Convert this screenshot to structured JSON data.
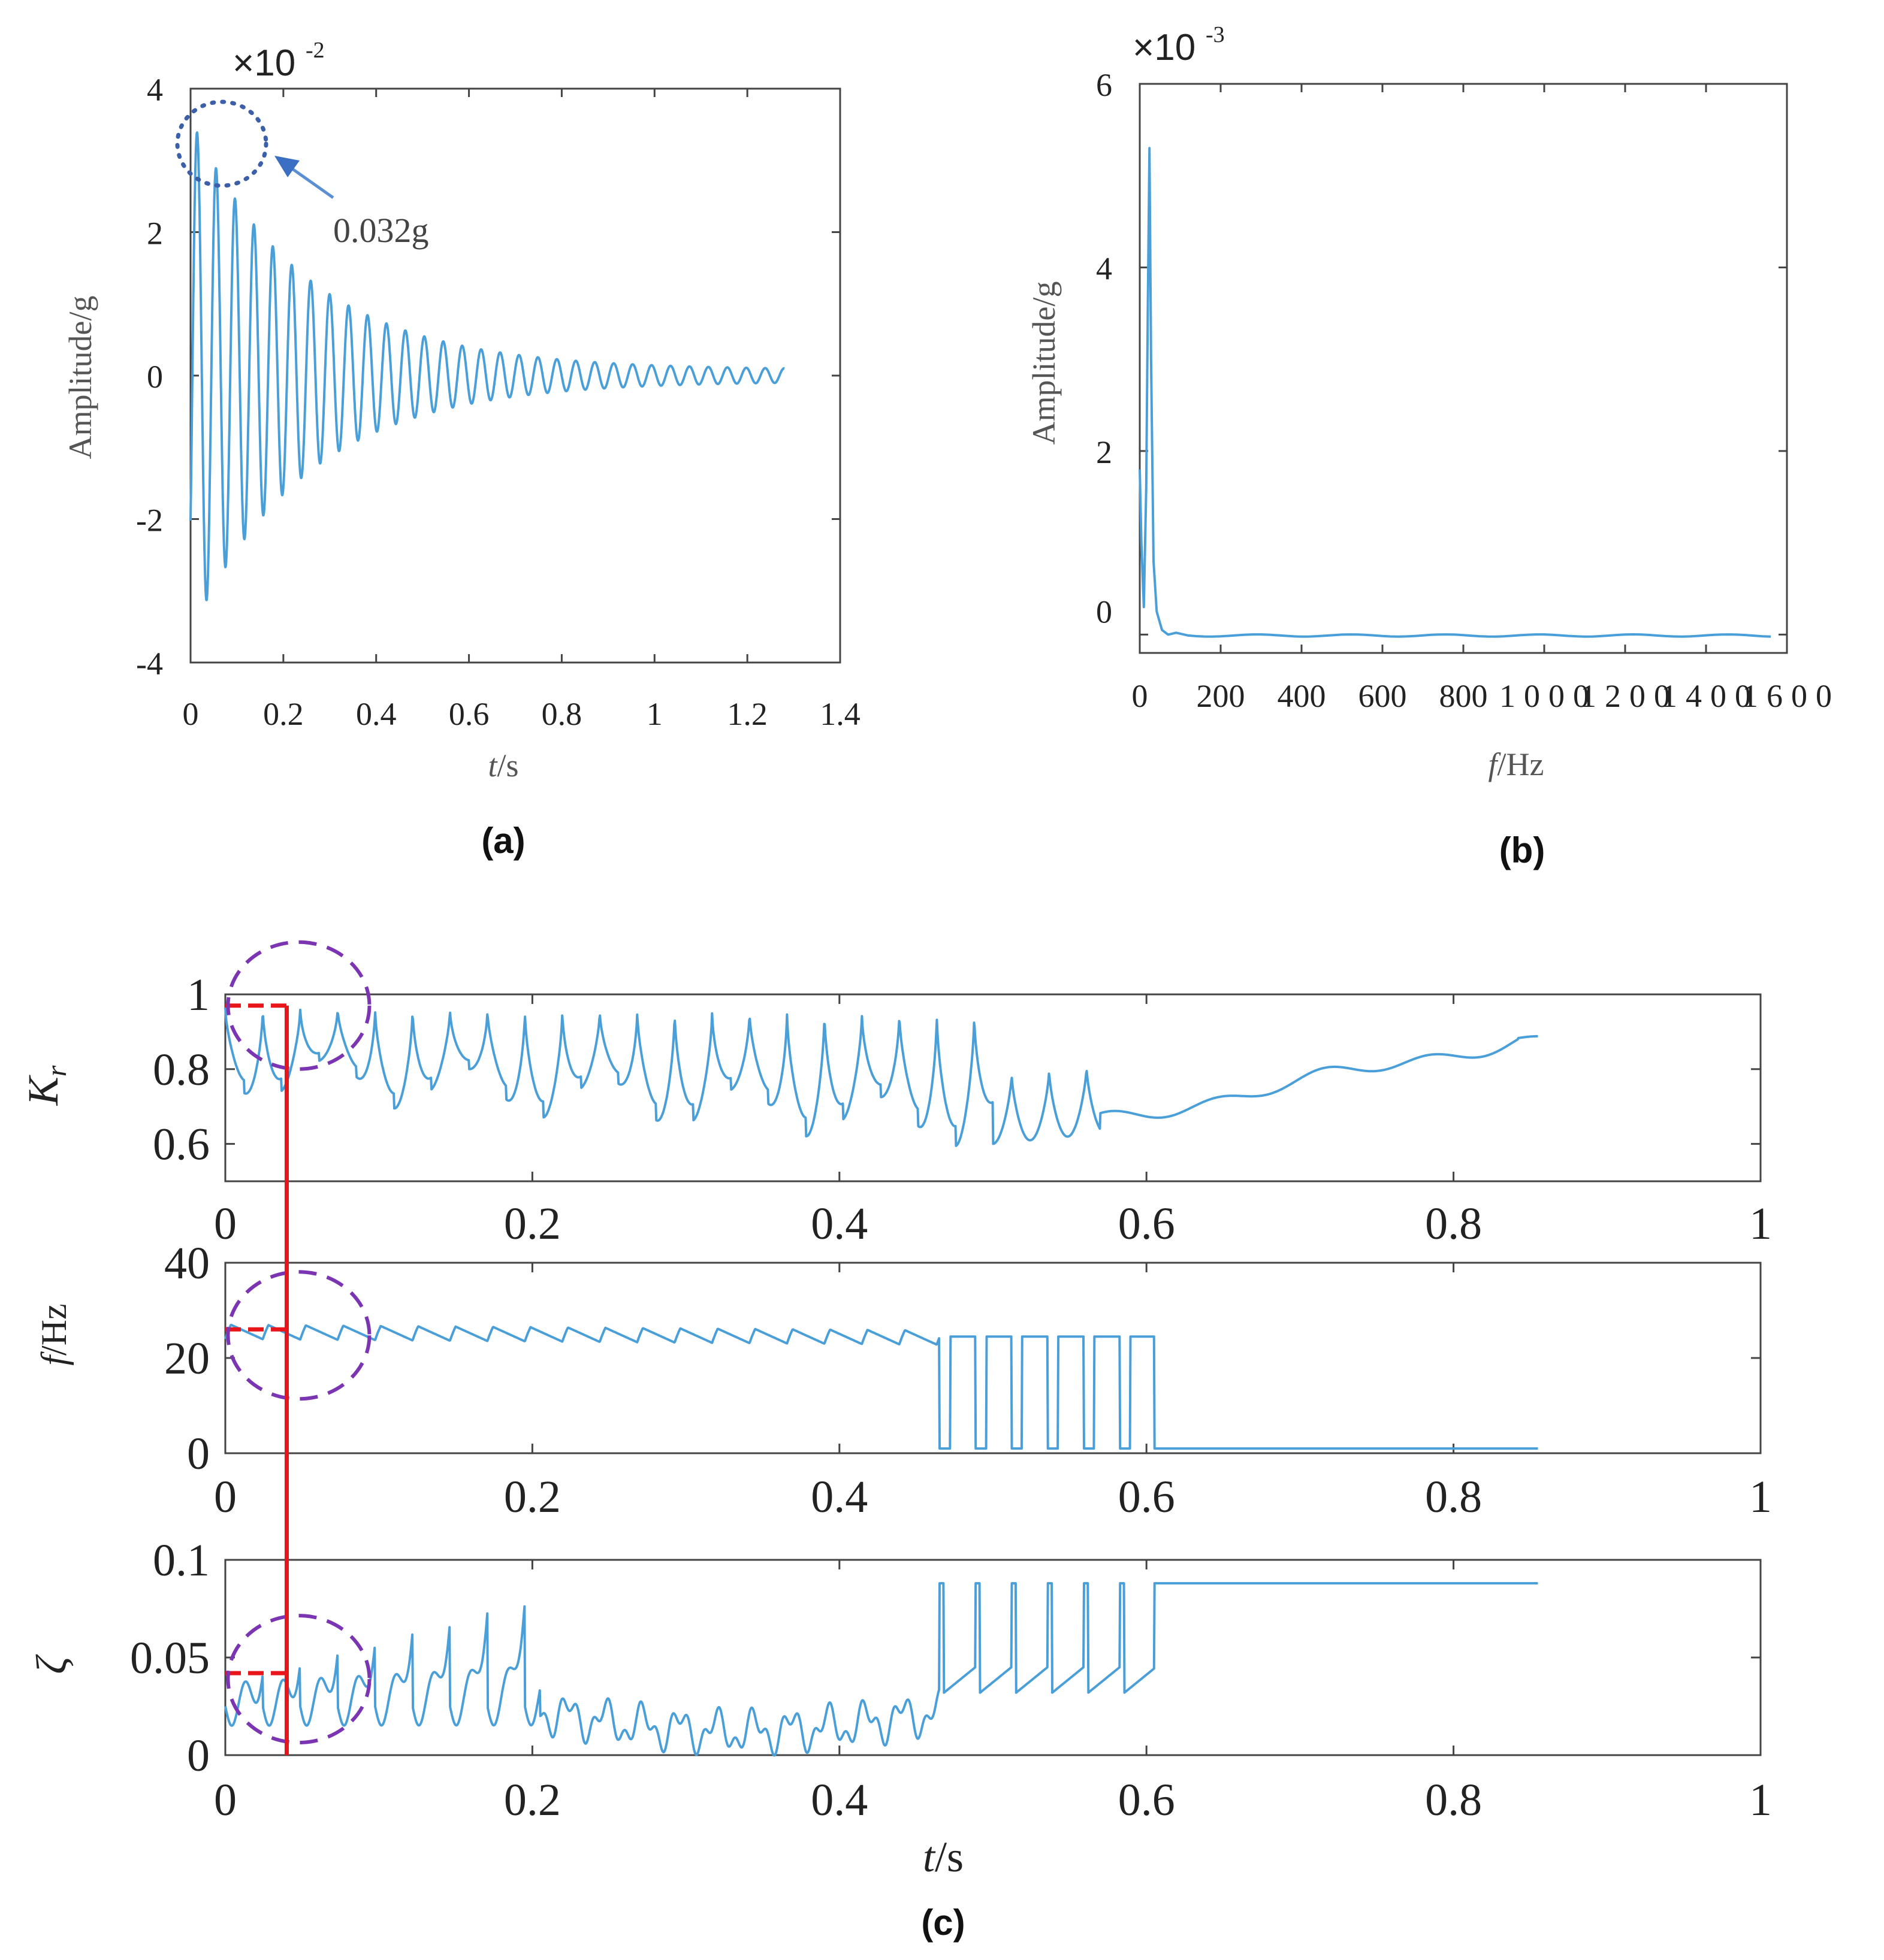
{
  "chart_data": [
    {
      "panel": "(a)",
      "type": "line",
      "exponent_label": "×10",
      "exponent_power": "-2",
      "xlabel_var": "t",
      "xlabel_unit": "/s",
      "ylabel": "Amplitude/g",
      "xlim": [
        0,
        1.4
      ],
      "ylim": [
        -4,
        4
      ],
      "xticks": [
        "0",
        "0.2",
        "0.4",
        "0.6",
        "0.8",
        "1",
        "1.2",
        "1.4"
      ],
      "yticks": [
        "-4",
        "-2",
        "0",
        "2",
        "4"
      ],
      "signal": {
        "amplitude": 3.5,
        "frequency_hz": 24.5,
        "decay_per_s": 4.0,
        "duration_s": 1.28
      },
      "annotation": {
        "text": "0.032g",
        "x": 0.08,
        "y": 3.2
      },
      "color": "#4a9fd8"
    },
    {
      "panel": "(b)",
      "type": "line",
      "exponent_label": "×10",
      "exponent_power": "-3",
      "xlabel_var": "f",
      "xlabel_unit": "/Hz",
      "ylabel": "Amplitude/g",
      "xlim": [
        0,
        1600
      ],
      "ylim": [
        -0.2,
        6
      ],
      "xticks": [
        "0",
        "200",
        "400",
        "600",
        "800",
        "1000",
        "1200",
        "1400",
        "1600"
      ],
      "yticks": [
        "0",
        "2",
        "4",
        "6"
      ],
      "peaks": [
        {
          "x": 0,
          "y": 1.8
        },
        {
          "x": 24,
          "y": 5.3
        }
      ],
      "color": "#4a9fd8"
    },
    {
      "panel": "(c)",
      "type": "line",
      "xlabel_var": "t",
      "xlabel_unit": "/s",
      "marker_time": 0.04,
      "subplots": [
        {
          "ylabel": "K_r",
          "ylabel_main": "K",
          "ylabel_sub": "r",
          "ylim": [
            0.5,
            1
          ],
          "yticks": [
            "0.6",
            "0.8",
            "1"
          ],
          "xticks": [
            "0",
            "0.2",
            "0.4",
            "0.6",
            "0.8",
            "1"
          ],
          "marker_value": 0.97
        },
        {
          "ylabel": "f/Hz",
          "ylabel_main": "f",
          "ylabel_sub": "/Hz",
          "ylim": [
            0,
            40
          ],
          "yticks": [
            "0",
            "20",
            "40"
          ],
          "xticks": [
            "0",
            "0.2",
            "0.4",
            "0.6",
            "0.8",
            "1"
          ],
          "marker_value": 26
        },
        {
          "ylabel": "ζ",
          "ylabel_main": "ζ",
          "ylabel_sub": "",
          "ylim": [
            0,
            0.1
          ],
          "yticks": [
            "0",
            "0.05",
            "0.1"
          ],
          "xticks": [
            "0",
            "0.2",
            "0.4",
            "0.6",
            "0.8",
            "1"
          ],
          "marker_value": 0.042
        }
      ],
      "xlim": [
        0,
        1
      ],
      "duration_s": 0.855,
      "color": "#4a9fd8",
      "marker_color": "#e8151a",
      "circle_color": "#7b35b2"
    }
  ]
}
